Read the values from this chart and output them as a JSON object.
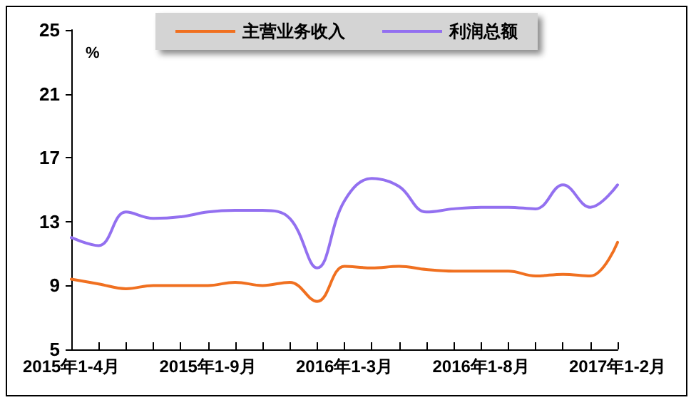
{
  "chart_data": {
    "type": "line",
    "ylabel": "%",
    "categories": [
      "2015年1-4月",
      null,
      null,
      null,
      null,
      "2015年1-9月",
      null,
      null,
      null,
      null,
      "2016年1-3月",
      null,
      null,
      null,
      null,
      "2016年1-8月",
      null,
      null,
      null,
      null,
      "2017年1-2月"
    ],
    "series": [
      {
        "name": "主营业务收入",
        "color": "#f07020",
        "values": [
          9.4,
          9.1,
          8.8,
          9.0,
          9.0,
          9.0,
          9.2,
          9.0,
          9.2,
          8.0,
          10.2,
          10.1,
          10.2,
          10.0,
          9.9,
          9.9,
          9.9,
          9.6,
          9.7,
          9.6,
          11.7
        ]
      },
      {
        "name": "利润总额",
        "color": "#9370f0",
        "values": [
          12.0,
          11.5,
          13.6,
          13.2,
          13.3,
          13.6,
          13.7,
          13.7,
          13.2,
          10.1,
          14.3,
          15.7,
          15.2,
          13.6,
          13.8,
          13.9,
          13.9,
          13.8,
          15.3,
          13.9,
          15.3
        ]
      }
    ],
    "ylim": [
      5,
      25
    ],
    "yticks": [
      5,
      9,
      13,
      17,
      21,
      25
    ],
    "grid": false,
    "legend": "top",
    "marker": "none",
    "line_style": "solid"
  }
}
